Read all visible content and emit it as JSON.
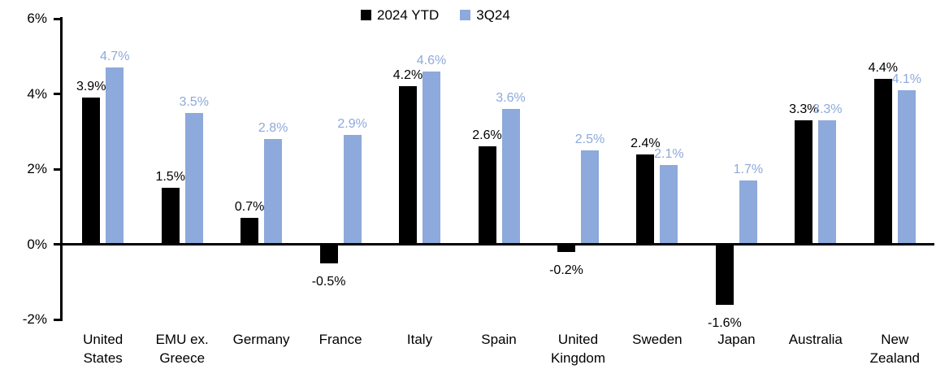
{
  "chart_data": {
    "type": "bar",
    "title": "",
    "xlabel": "",
    "ylabel": "",
    "value_suffix": "%",
    "grid": false,
    "legend_position": "top-center",
    "background_color": "#ffffff",
    "axis_color": "#000000",
    "ylim": [
      -2,
      6
    ],
    "yticks": [
      {
        "value": 6,
        "label": "6%"
      },
      {
        "value": 4,
        "label": "4%"
      },
      {
        "value": 2,
        "label": "2%"
      },
      {
        "value": 0,
        "label": "0%"
      },
      {
        "value": -2,
        "label": "-2%"
      }
    ],
    "categories": [
      "United States",
      "EMU ex. Greece",
      "Germany",
      "France",
      "Italy",
      "Spain",
      "United Kingdom",
      "Sweden",
      "Japan",
      "Australia",
      "New Zealand"
    ],
    "series": [
      {
        "name": "2024 YTD",
        "color": "#000000",
        "values": [
          3.9,
          1.5,
          0.7,
          -0.5,
          4.2,
          2.6,
          -0.2,
          2.4,
          -1.6,
          3.3,
          4.4
        ],
        "labels": [
          "3.9%",
          "1.5%",
          "0.7%",
          "-0.5%",
          "4.2%",
          "2.6%",
          "-0.2%",
          "2.4%",
          "-1.6%",
          "3.3%",
          "4.4%"
        ]
      },
      {
        "name": "3Q24",
        "color": "#8EA9DB",
        "values": [
          4.7,
          3.5,
          2.8,
          2.9,
          4.6,
          3.6,
          2.5,
          2.1,
          1.7,
          3.3,
          4.1
        ],
        "labels": [
          "4.7%",
          "3.5%",
          "2.8%",
          "2.9%",
          "4.6%",
          "3.6%",
          "2.5%",
          "2.1%",
          "1.7%",
          "3.3%",
          "4.1%"
        ]
      }
    ]
  }
}
